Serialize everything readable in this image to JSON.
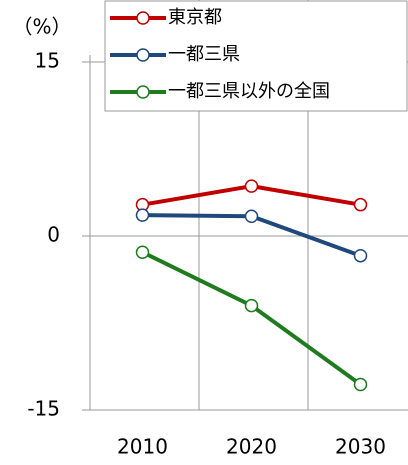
{
  "chart_data": {
    "type": "line",
    "unit_label": "（%）",
    "categories": [
      "2010",
      "2020",
      "2030"
    ],
    "series": [
      {
        "name": "東京都",
        "color": "#c00000",
        "values": [
          2.7,
          4.3,
          2.7
        ]
      },
      {
        "name": "一都三県",
        "color": "#1f497d",
        "values": [
          1.8,
          1.7,
          -1.7
        ]
      },
      {
        "name": "一都三県以外の全国",
        "color": "#1e7b1e",
        "values": [
          -1.4,
          -6.0,
          -12.8
        ]
      }
    ],
    "ylim": [
      -15,
      15
    ],
    "yticks": [
      -15,
      0,
      15
    ],
    "grid": true,
    "legend": "top-right"
  }
}
